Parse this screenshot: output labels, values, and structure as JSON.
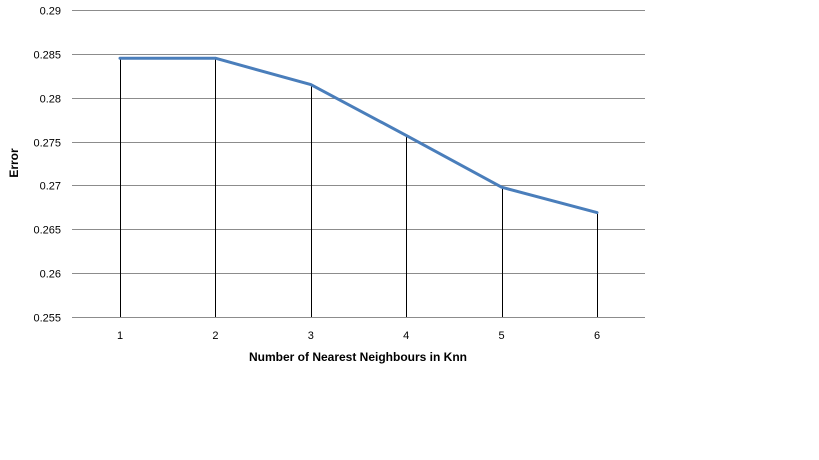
{
  "chart_data": {
    "type": "line",
    "title": "",
    "xlabel": "Number of Nearest Neighbours in Knn",
    "ylabel": "Error",
    "x": [
      1,
      2,
      3,
      4,
      5,
      6
    ],
    "x_tick_labels": [
      "1",
      "2",
      "3",
      "4",
      "5",
      "6"
    ],
    "series": [
      {
        "values": [
          0.2845,
          0.2845,
          0.2815,
          0.2757,
          0.2698,
          0.2669
        ]
      }
    ],
    "ylim": [
      0.255,
      0.29
    ],
    "y_tick_labels": [
      "0.255",
      "0.26",
      "0.265",
      "0.27",
      "0.275",
      "0.28",
      "0.285",
      "0.29"
    ],
    "drop_lines": true,
    "grid": "horizontal",
    "legend": "none",
    "colors": {
      "line": "#4a7ebb",
      "grid": "#8c8c8c",
      "drop_line": "#000000"
    }
  }
}
